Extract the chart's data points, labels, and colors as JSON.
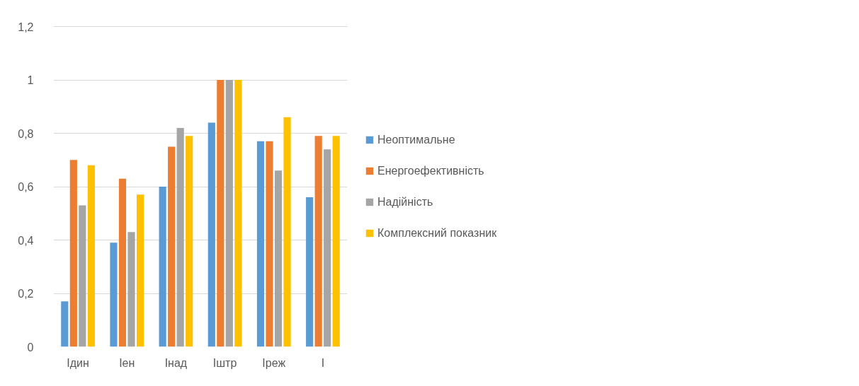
{
  "chart_data": {
    "type": "bar",
    "categories": [
      "Ідин",
      "Іен",
      "Інад",
      "Іштр",
      "Іреж",
      "І"
    ],
    "series": [
      {
        "name": "Неоптимальне",
        "color": "#5b9bd5",
        "values": [
          0.17,
          0.39,
          0.6,
          0.84,
          0.77,
          0.56
        ]
      },
      {
        "name": "Енергоефективність",
        "color": "#ed7d31",
        "values": [
          0.7,
          0.63,
          0.75,
          1.0,
          0.77,
          0.79
        ]
      },
      {
        "name": "Надійність",
        "color": "#a5a5a5",
        "values": [
          0.53,
          0.43,
          0.82,
          1.0,
          0.66,
          0.74
        ]
      },
      {
        "name": "Комплексний показник",
        "color": "#ffc000",
        "values": [
          0.68,
          0.57,
          0.79,
          1.0,
          0.86,
          0.79
        ]
      }
    ],
    "ylim": [
      0,
      1.2
    ],
    "yticks": [
      0,
      {
        "value": 0.2,
        "label": "0,2"
      },
      {
        "value": 0.4,
        "label": "0,4"
      },
      {
        "value": 0.6,
        "label": "0,6"
      },
      {
        "value": 0.8,
        "label": "0,8"
      },
      1,
      {
        "value": 1.2,
        "label": "1,2"
      }
    ],
    "grid": "y",
    "legend": "right"
  }
}
